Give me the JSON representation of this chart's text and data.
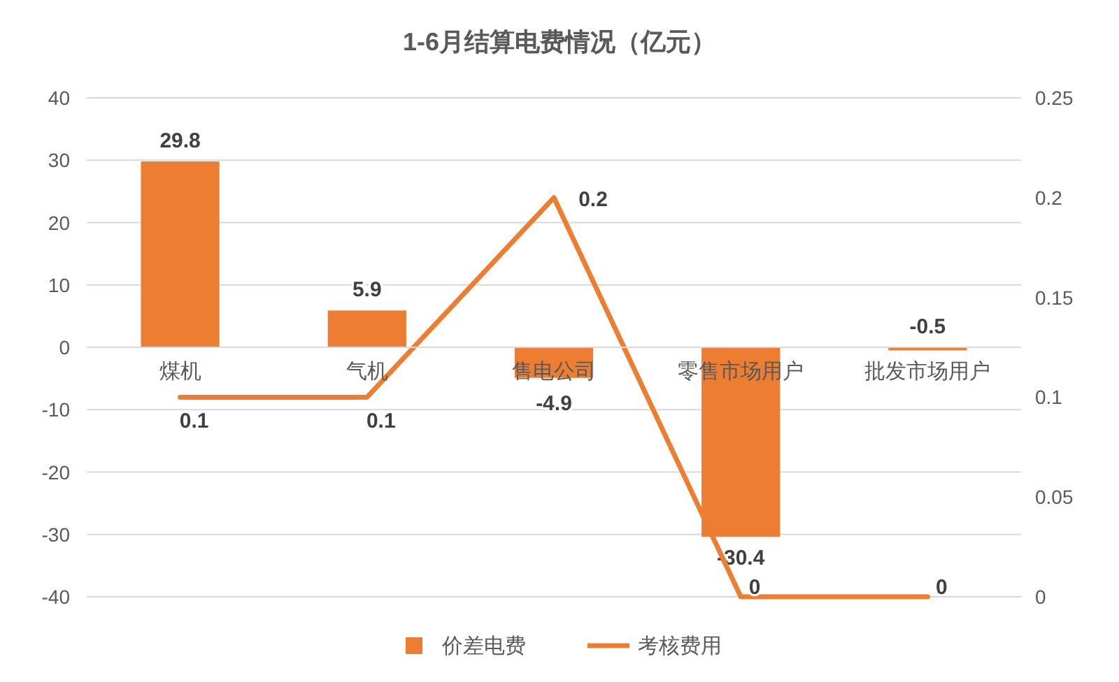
{
  "chart_data": {
    "type": "bar",
    "title": "1-6月结算电费情况（亿元）",
    "categories": [
      "煤机",
      "气机",
      "售电公司",
      "零售市场用户",
      "批发市场用户"
    ],
    "series": [
      {
        "name": "价差电费",
        "color": "#ed7d31",
        "values": [
          29.8,
          5.9,
          -4.9,
          -30.4,
          -0.5
        ]
      },
      {
        "name": "考核费用",
        "type": "line",
        "axis": "y2",
        "color": "#ed7d31",
        "values": [
          0.1,
          0.1,
          0.2,
          0,
          0
        ]
      }
    ],
    "ylim": [
      -40,
      40
    ],
    "yticks": [
      -40,
      -30,
      -20,
      -10,
      0,
      10,
      20,
      30,
      40
    ],
    "y2lim": [
      0,
      0.25
    ],
    "y2ticks": [
      0,
      0.05,
      0.1,
      0.15,
      0.2,
      0.25
    ],
    "grid": "y",
    "legend": "bottom",
    "data_labels": true,
    "marker": "none",
    "line_style": "solid"
  }
}
